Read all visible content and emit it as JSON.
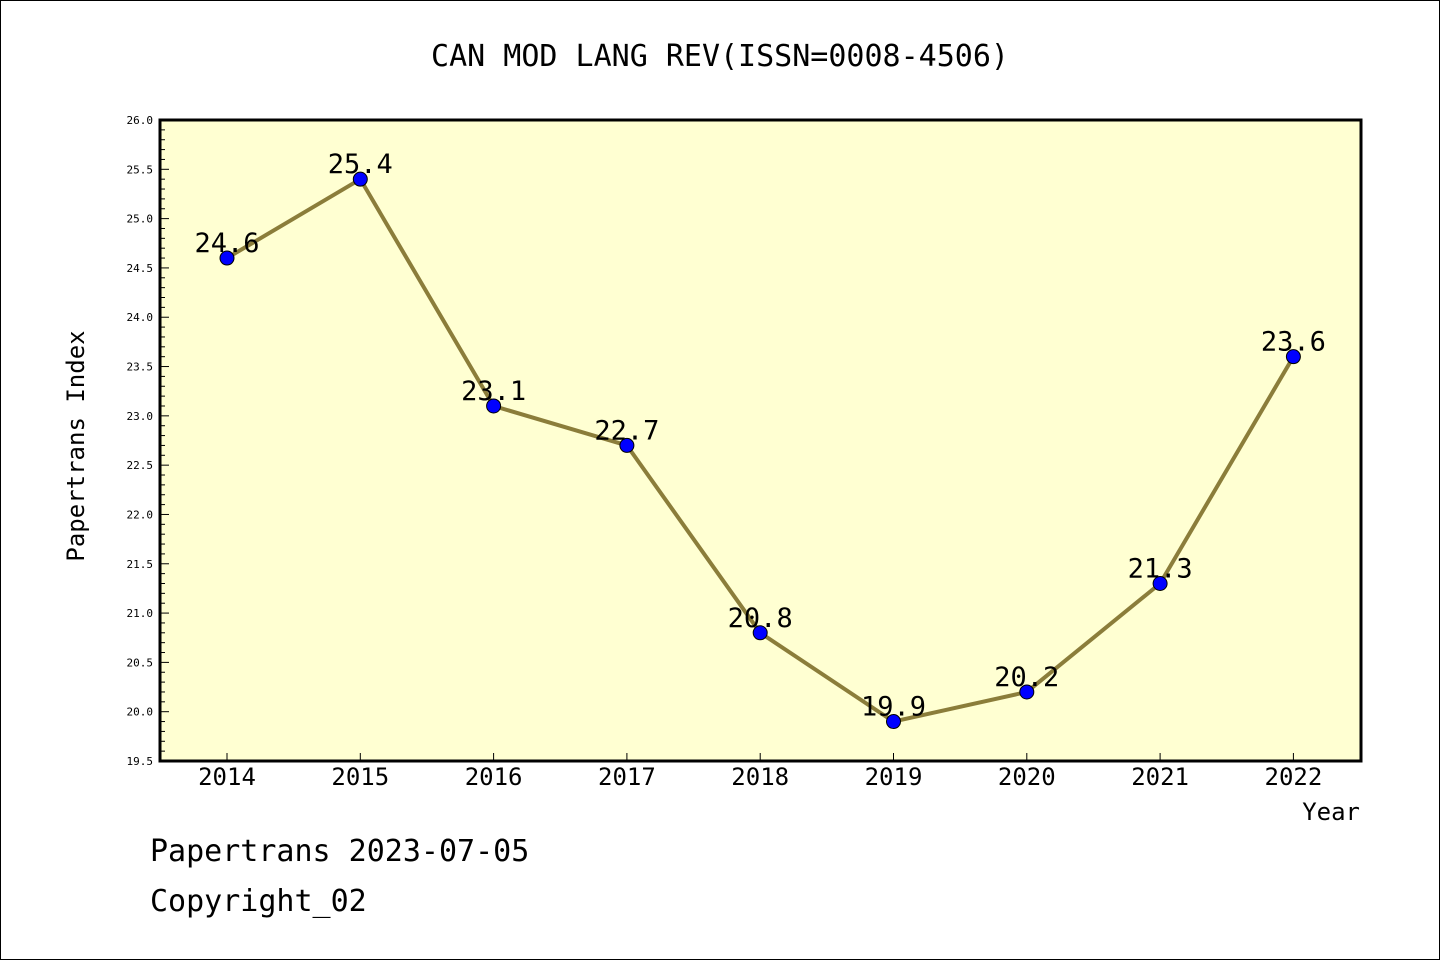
{
  "chart_data": {
    "type": "line",
    "title": "CAN MOD LANG REV(ISSN=0008-4506)",
    "xlabel": "Year",
    "ylabel": "Papertrans Index",
    "categories": [
      "2014",
      "2015",
      "2016",
      "2017",
      "2018",
      "2019",
      "2020",
      "2021",
      "2022"
    ],
    "series": [
      {
        "values": [
          24.6,
          25.4,
          23.1,
          22.7,
          20.8,
          19.9,
          20.2,
          21.3,
          23.6
        ],
        "data_labels": [
          "24.6",
          "25.4",
          "23.1",
          "22.7",
          "20.8",
          "19.9",
          "20.2",
          "21.3",
          "23.6"
        ]
      }
    ],
    "ylim": [
      19.5,
      26.0
    ],
    "yticks": [
      "19.5",
      "20.0",
      "20.5",
      "21.0",
      "21.5",
      "22.0",
      "22.5",
      "23.0",
      "23.5",
      "24.0",
      "24.5",
      "25.0",
      "25.5",
      "26.0"
    ],
    "grid": false,
    "legend": "none",
    "colors": {
      "plot_background": "#ffffd2",
      "line": "#8b7d3a",
      "marker": "#0000ff"
    }
  },
  "footer": {
    "line1": "Papertrans 2023-07-05",
    "line2": "Copyright_02"
  }
}
